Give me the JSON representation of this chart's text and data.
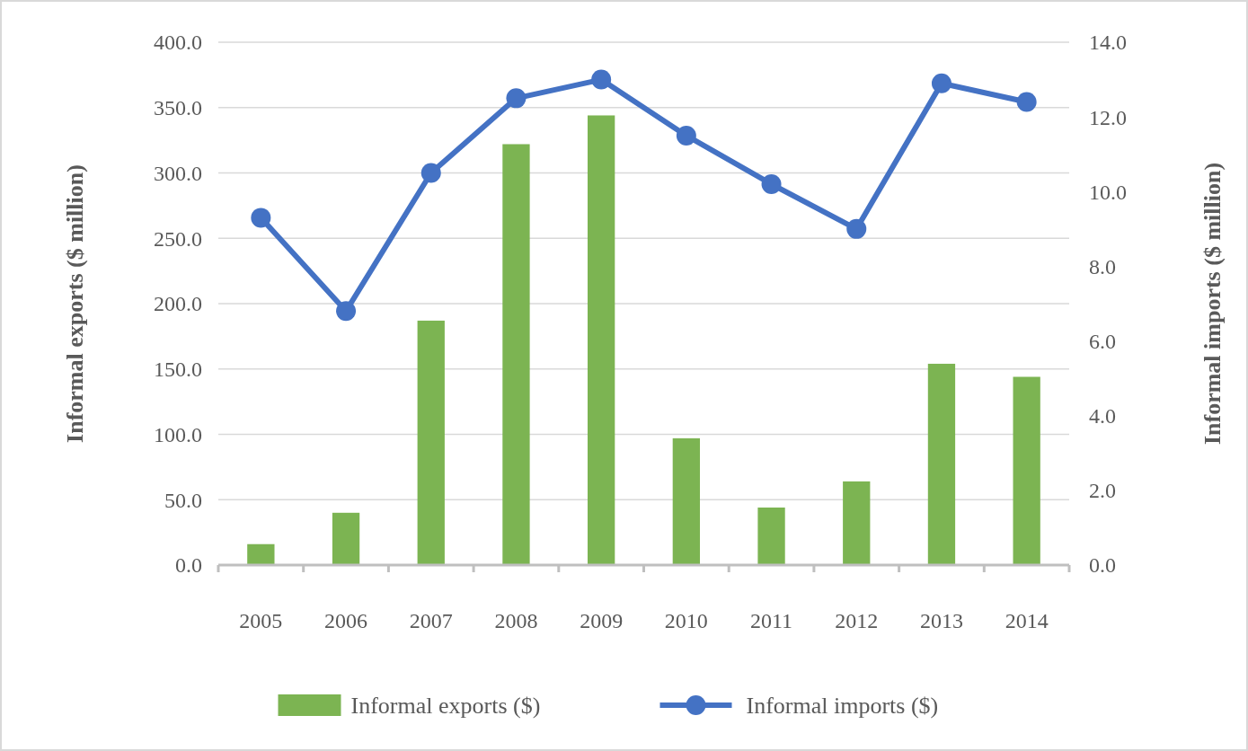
{
  "chart_data": {
    "type": "bar",
    "categories": [
      "2005",
      "2006",
      "2007",
      "2008",
      "2009",
      "2010",
      "2011",
      "2012",
      "2013",
      "2014"
    ],
    "series": [
      {
        "name": "Informal exports ($)",
        "color": "#7cb452",
        "values": [
          16,
          40,
          187,
          322,
          344,
          97,
          44,
          64,
          154,
          144
        ]
      },
      {
        "name": "Informal imports ($)",
        "type": "line",
        "axis": "y2",
        "color": "#4472c4",
        "values": [
          9.3,
          6.8,
          10.5,
          12.5,
          13.0,
          11.5,
          10.2,
          9.0,
          12.9,
          12.4
        ]
      }
    ],
    "ylabel": "Informal exports ($ million)",
    "y2label": "Informal imports ($ million)",
    "ylim": [
      0,
      400
    ],
    "yticks": [
      {
        "value": 0,
        "label": "0.0"
      },
      {
        "value": 50,
        "label": "50.0"
      },
      {
        "value": 100,
        "label": "100.0"
      },
      {
        "value": 150,
        "label": "150.0"
      },
      {
        "value": 200,
        "label": "200.0"
      },
      {
        "value": 250,
        "label": "250.0"
      },
      {
        "value": 300,
        "label": "300.0"
      },
      {
        "value": 350,
        "label": "350.0"
      },
      {
        "value": 400,
        "label": "400.0"
      }
    ],
    "y2lim": [
      0,
      14
    ],
    "y2ticks": [
      {
        "value": 0,
        "label": "0.0"
      },
      {
        "value": 2,
        "label": "2.0"
      },
      {
        "value": 4,
        "label": "4.0"
      },
      {
        "value": 6,
        "label": "6.0"
      },
      {
        "value": 8,
        "label": "8.0"
      },
      {
        "value": 10,
        "label": "10.0"
      },
      {
        "value": 12,
        "label": "12.0"
      },
      {
        "value": 14,
        "label": "14.0"
      }
    ],
    "grid": "y",
    "legend": "bottom",
    "marker": "circle",
    "line_style": "solid"
  }
}
